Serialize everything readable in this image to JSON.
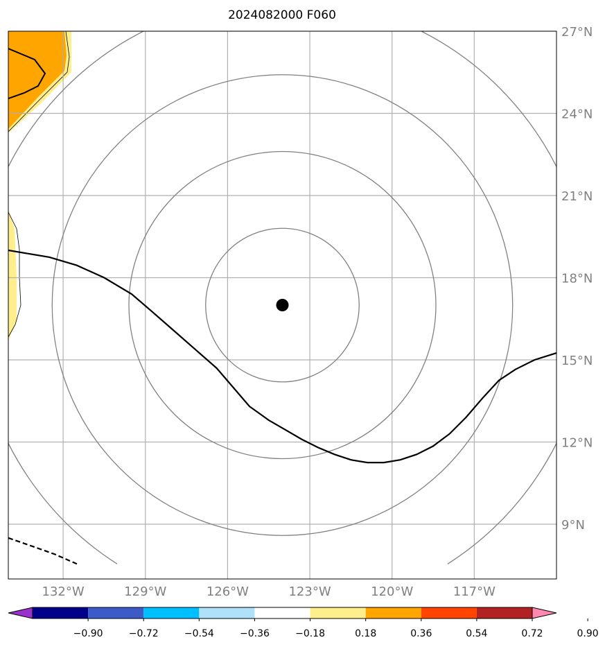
{
  "title": "2024082000 F060",
  "chart_data": {
    "type": "heatmap",
    "title": "2024082000 F060",
    "map": {
      "lon_range": [
        -134,
        -114
      ],
      "lat_range": [
        7,
        27
      ],
      "lon_ticks": [
        -132,
        -129,
        -126,
        -123,
        -120,
        -117
      ],
      "lon_tick_labels": [
        "132°W",
        "129°W",
        "126°W",
        "123°W",
        "120°W",
        "117°W"
      ],
      "lat_ticks": [
        9,
        12,
        15,
        18,
        21,
        24,
        27
      ],
      "lat_tick_labels": [
        "9°N",
        "12°N",
        "15°N",
        "18°N",
        "21°N",
        "24°N",
        "27°N"
      ],
      "grid": true,
      "lat_labels_side": "right"
    },
    "center_point": {
      "lon": -124,
      "lat": 17
    },
    "range_rings_deg": [
      2.8,
      5.6,
      8.4,
      11.2
    ],
    "contour_solid": [
      [
        -134,
        19.0
      ],
      [
        -132.5,
        18.75
      ],
      [
        -131.5,
        18.45
      ],
      [
        -130.5,
        18.0
      ],
      [
        -129.5,
        17.4
      ],
      [
        -128.8,
        16.8
      ],
      [
        -128.0,
        16.1
      ],
      [
        -127.2,
        15.4
      ],
      [
        -126.4,
        14.7
      ],
      [
        -125.8,
        14.0
      ],
      [
        -125.2,
        13.3
      ],
      [
        -124.5,
        12.8
      ],
      [
        -123.9,
        12.45
      ],
      [
        -123.3,
        12.1
      ],
      [
        -122.7,
        11.8
      ],
      [
        -122.1,
        11.55
      ],
      [
        -121.5,
        11.35
      ],
      [
        -120.9,
        11.25
      ],
      [
        -120.3,
        11.25
      ],
      [
        -119.7,
        11.35
      ],
      [
        -119.1,
        11.55
      ],
      [
        -118.5,
        11.85
      ],
      [
        -117.9,
        12.3
      ],
      [
        -117.3,
        12.9
      ],
      [
        -116.7,
        13.6
      ],
      [
        -116.1,
        14.25
      ],
      [
        -115.5,
        14.65
      ],
      [
        -114.8,
        15.0
      ],
      [
        -114,
        15.25
      ]
    ],
    "contour_dashed": [
      [
        -134,
        8.5
      ],
      [
        -133,
        8.15
      ],
      [
        -132.3,
        7.9
      ],
      [
        -131.5,
        7.55
      ]
    ],
    "fill_regions": [
      {
        "level": "0.18–0.36",
        "color": "#ffee8c"
      },
      {
        "level": "0.36–0.54",
        "color": "#ffa500"
      }
    ],
    "colorbar": {
      "extend": "both",
      "ticks": [
        "−0.90",
        "−0.72",
        "−0.54",
        "−0.36",
        "−0.18",
        "0.18",
        "0.36",
        "0.54",
        "0.72",
        "0.90"
      ],
      "colors": [
        "#9932cc",
        "#00008b",
        "#3c5ac8",
        "#00bfff",
        "#afe1fa",
        "#ffffff",
        "#ffee8c",
        "#ffa500",
        "#ff4500",
        "#b22222",
        "#ff88b0"
      ]
    }
  }
}
